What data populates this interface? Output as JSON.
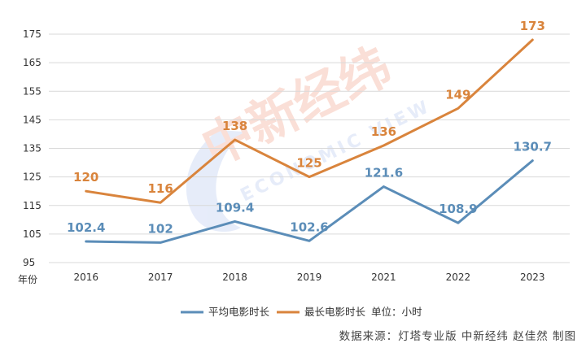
{
  "chart_data": {
    "type": "line",
    "categories": [
      "2016",
      "2017",
      "2018",
      "2019",
      "2021",
      "2022",
      "2023"
    ],
    "series": [
      {
        "name": "平均电影时长",
        "values": [
          102.4,
          102,
          109.4,
          102.6,
          121.6,
          108.9,
          130.7
        ],
        "color": "#5b8db8"
      },
      {
        "name": "最长电影时长",
        "values": [
          120,
          116,
          138,
          125,
          136,
          149,
          173
        ],
        "color": "#d9843c"
      }
    ],
    "xlabel": "年份",
    "ylabel": "",
    "ylim": [
      95,
      175
    ],
    "yticks": [
      95,
      105,
      115,
      125,
      135,
      145,
      155,
      165,
      175
    ],
    "unit_label": "单位：小时",
    "grid": true,
    "legend_position": "bottom"
  },
  "footer": {
    "source": "数据来源：灯塔专业版 中新经纬 赵佳然 制图"
  },
  "watermark": {
    "text_cn": "中新经纬",
    "text_en": "ECONOMIC VIEW"
  }
}
